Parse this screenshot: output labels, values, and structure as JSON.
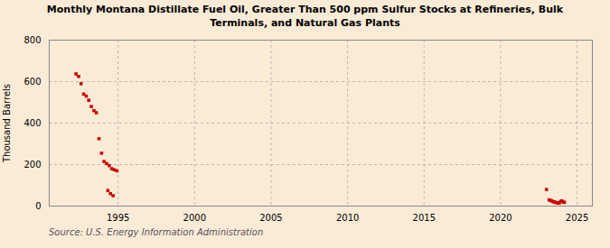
{
  "chart_data": {
    "type": "scatter",
    "title": "Monthly Montana Distillate Fuel Oil, Greater Than 500 ppm Sulfur Stocks at Refineries, Bulk\nTerminals, and Natural Gas Plants",
    "ylabel": "Thousand Barrels",
    "caption": "Source: U.S. Energy Information Administration",
    "x": [
      1992.25,
      1992.42,
      1992.58,
      1992.75,
      1992.92,
      1993.08,
      1993.25,
      1993.42,
      1993.58,
      1993.75,
      1993.92,
      1994.08,
      1994.25,
      1994.42,
      1994.58,
      1994.75,
      1994.92,
      1994.33,
      1994.5,
      1994.67,
      2023.0,
      2023.17,
      2023.25,
      2023.33,
      2023.42,
      2023.5,
      2023.58,
      2023.67,
      2023.75,
      2023.83,
      2023.92,
      2024.0,
      2024.08,
      2024.17
    ],
    "values": [
      637,
      625,
      590,
      540,
      530,
      510,
      480,
      460,
      450,
      325,
      255,
      215,
      205,
      195,
      180,
      175,
      170,
      75,
      60,
      50,
      80,
      30,
      28,
      25,
      22,
      20,
      18,
      16,
      15,
      14,
      22,
      25,
      20,
      18
    ],
    "color": "#cc0000",
    "marker": "square",
    "xlim": [
      1990.5,
      2026
    ],
    "xticks": [
      1995,
      2000,
      2005,
      2010,
      2015,
      2020,
      2025
    ],
    "ylim": [
      0,
      800
    ],
    "yticks": [
      0,
      200,
      400,
      600,
      800
    ],
    "grid": true
  }
}
